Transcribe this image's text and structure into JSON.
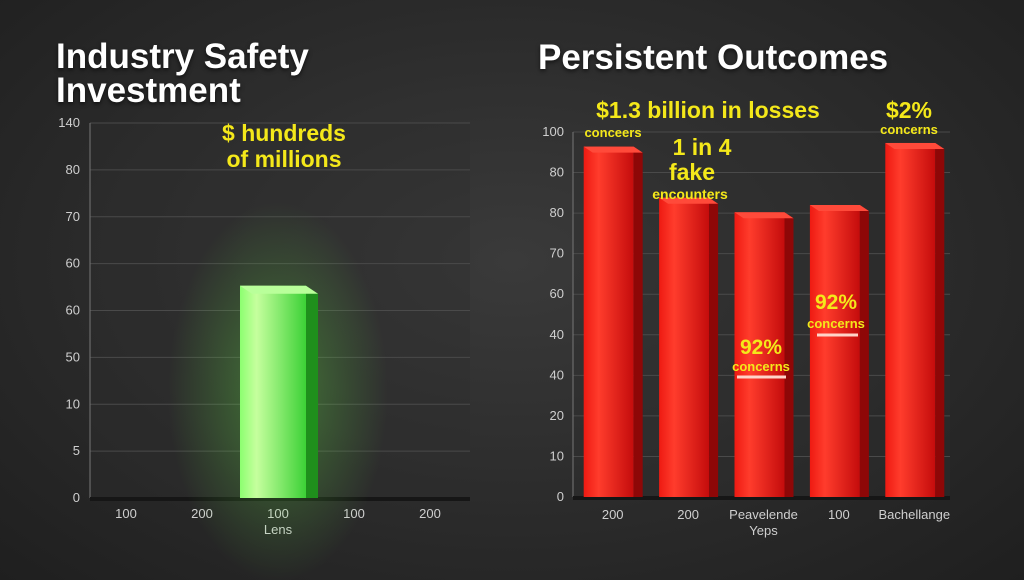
{
  "chart_data": [
    {
      "type": "bar",
      "title": "Industry Safety Investment",
      "y_tick_labels": [
        "140",
        "80",
        "70",
        "60",
        "60",
        "50",
        "10",
        "5",
        "0"
      ],
      "categories": [
        "100",
        "200",
        "100",
        "100",
        "200"
      ],
      "xlabel": "Lens",
      "series": [
        {
          "values": [
            0,
            0,
            80,
            0,
            0
          ]
        }
      ],
      "ylim": [
        0,
        140
      ],
      "grid": true,
      "annotations": [
        {
          "category_index": 2,
          "lines": [
            "$ hundreds",
            "of millions"
          ]
        }
      ],
      "colors": {
        "bar": "#3fd63a",
        "bar_highlight": "#b9ff9a",
        "bar_side": "#1f8f1c"
      }
    },
    {
      "type": "bar",
      "title": "Persistent Outcomes",
      "y_tick_labels": [
        "100",
        "80",
        "80",
        "70",
        "60",
        "40",
        "40",
        "20",
        "10",
        "0"
      ],
      "categories": [
        "200",
        "200",
        "Peavelende",
        "100",
        "Bachellange"
      ],
      "xlabel": "Yeps",
      "series": [
        {
          "values": [
            96,
            82,
            78,
            80,
            97
          ]
        }
      ],
      "ylim": [
        0,
        100
      ],
      "grid": true,
      "annotations": [
        {
          "category_index": 0,
          "big": "$1.3 billion in losses",
          "small": "conceers"
        },
        {
          "category_index": 1,
          "big": "1 in 4",
          "big2": "fake",
          "small": "encounters"
        },
        {
          "category_index": 2,
          "big": "92%",
          "small": "concerns"
        },
        {
          "category_index": 3,
          "big": "92%",
          "small": "concerns"
        },
        {
          "category_index": 4,
          "big": "$2%",
          "small": "concerns"
        }
      ],
      "colors": {
        "bar": "#d81010",
        "bar_highlight": "#ff4a3a",
        "bar_side": "#8e0707"
      }
    }
  ]
}
